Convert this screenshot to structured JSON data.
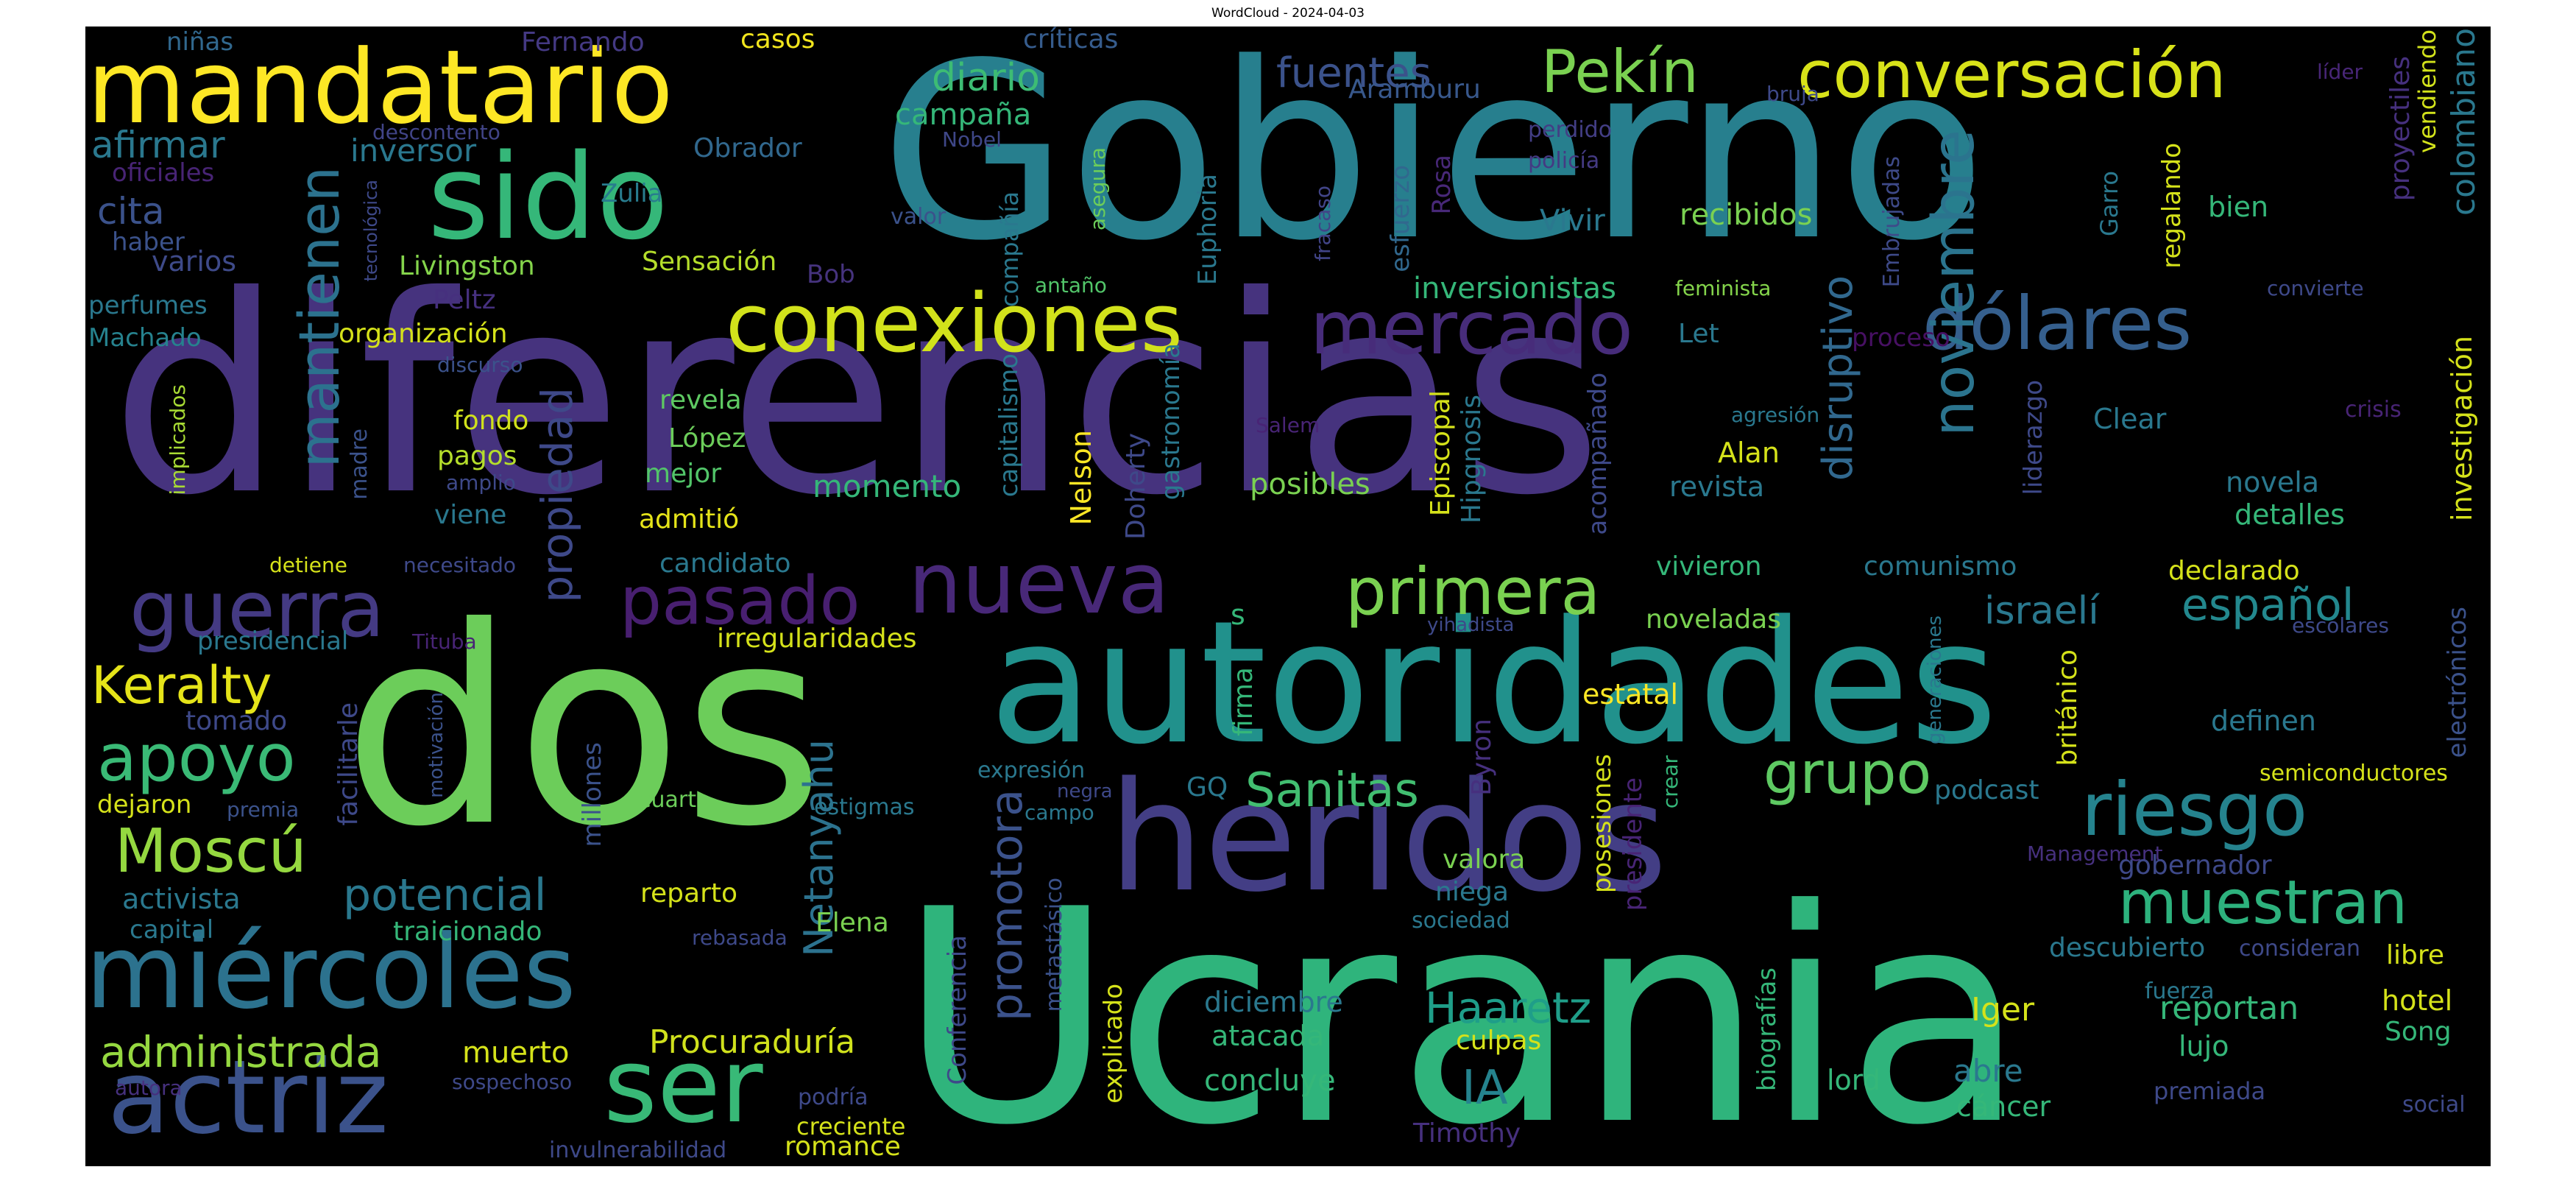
{
  "title": "WordCloud - 2024-04-03",
  "colors": {
    "background": "#000000",
    "page": "#ffffff"
  },
  "words": [
    {
      "text": "diferencias",
      "color": "#46337e"
    },
    {
      "text": "Ucrania",
      "color": "#2fb47c"
    },
    {
      "text": "Gobierno",
      "color": "#277f8e"
    },
    {
      "text": "dos",
      "color": "#6ccd5a"
    },
    {
      "text": "autoridades",
      "color": "#21918c"
    },
    {
      "text": "heridos",
      "color": "#433e85"
    },
    {
      "text": "mandatario",
      "color": "#fde725"
    },
    {
      "text": "sido",
      "color": "#35b779"
    },
    {
      "text": "miércoles",
      "color": "#2c728e"
    },
    {
      "text": "actriz",
      "color": "#3b528b"
    },
    {
      "text": "conexiones",
      "color": "#d2e21b"
    },
    {
      "text": "nueva",
      "color": "#482878"
    },
    {
      "text": "mercado",
      "color": "#472c7a"
    },
    {
      "text": "dólares",
      "color": "#355f8d"
    },
    {
      "text": "ser",
      "color": "#38b977"
    },
    {
      "text": "guerra",
      "color": "#443a83"
    },
    {
      "text": "riesgo",
      "color": "#25838e"
    },
    {
      "text": "pasado",
      "color": "#481f70"
    },
    {
      "text": "primera",
      "color": "#7ad151"
    },
    {
      "text": "muestran",
      "color": "#2db27d"
    },
    {
      "text": "Pekín",
      "color": "#7ad151"
    },
    {
      "text": "conversación",
      "color": "#d8e219"
    },
    {
      "text": "apoyo",
      "color": "#3aba76"
    },
    {
      "text": "Moscú",
      "color": "#95d840"
    },
    {
      "text": "Keralty",
      "color": "#e5e419"
    },
    {
      "text": "potencial",
      "color": "#2a788e"
    },
    {
      "text": "grupo",
      "color": "#5ec962"
    },
    {
      "text": "Sanitas",
      "color": "#42be71"
    },
    {
      "text": "administrada",
      "color": "#95d840"
    },
    {
      "text": "español",
      "color": "#23888e"
    },
    {
      "text": "israelí",
      "color": "#2a788e"
    },
    {
      "text": "Haaretz",
      "color": "#1f9e89"
    },
    {
      "text": "IA",
      "color": "#25838e"
    },
    {
      "text": "Procuraduría",
      "color": "#d0e11c"
    },
    {
      "text": "mantienen",
      "color": "#2c728e"
    },
    {
      "text": "noviembre",
      "color": "#2b748e"
    },
    {
      "text": "disruptivo",
      "color": "#31688e"
    },
    {
      "text": "propiedad",
      "color": "#3e4989"
    },
    {
      "text": "Netanyahu",
      "color": "#2c728e"
    },
    {
      "text": "promotora",
      "color": "#3b528b"
    },
    {
      "text": "fuentes",
      "color": "#3b528b"
    },
    {
      "text": "diario",
      "color": "#3dbc74"
    },
    {
      "text": "afirmar",
      "color": "#2a788e"
    },
    {
      "text": "inversor",
      "color": "#2a788e"
    },
    {
      "text": "cita",
      "color": "#3b528b"
    },
    {
      "text": "varios",
      "color": "#3e4a89"
    },
    {
      "text": "haber",
      "color": "#3b528b"
    },
    {
      "text": "campaña",
      "color": "#35b779"
    },
    {
      "text": "Zulia",
      "color": "#287c8e"
    },
    {
      "text": "Obrador",
      "color": "#31688e"
    },
    {
      "text": "Aramburu",
      "color": "#38588c"
    },
    {
      "text": "Livingston",
      "color": "#84d44b"
    },
    {
      "text": "Sensación",
      "color": "#b5de2b"
    },
    {
      "text": "Bob",
      "color": "#46337e"
    },
    {
      "text": "Peltz",
      "color": "#46307e"
    },
    {
      "text": "organización",
      "color": "#d5e21a"
    },
    {
      "text": "perfumes",
      "color": "#2a788e"
    },
    {
      "text": "Machado",
      "color": "#26828e"
    },
    {
      "text": "oficiales",
      "color": "#482475"
    },
    {
      "text": "niñas",
      "color": "#31688e"
    },
    {
      "text": "Fernando",
      "color": "#443983"
    },
    {
      "text": "casos",
      "color": "#f1e51d"
    },
    {
      "text": "críticas",
      "color": "#365c8d"
    },
    {
      "text": "descontento",
      "color": "#414487"
    },
    {
      "text": "Nobel",
      "color": "#3f4788"
    },
    {
      "text": "bruja",
      "color": "#3e4989"
    },
    {
      "text": "líder",
      "color": "#482677"
    },
    {
      "text": "vendiendo",
      "color": "#d2e21b"
    },
    {
      "text": "colombiano",
      "color": "#2a788e"
    },
    {
      "text": "proyectiles",
      "color": "#46307e"
    },
    {
      "text": "bien",
      "color": "#35b779"
    },
    {
      "text": "recibidos",
      "color": "#7ad151"
    },
    {
      "text": "Vivir",
      "color": "#2a788e"
    },
    {
      "text": "regalando",
      "color": "#d5e21a"
    },
    {
      "text": "Garro",
      "color": "#2a788e"
    },
    {
      "text": "Embrujadas",
      "color": "#3e4a89"
    },
    {
      "text": "inversionistas",
      "color": "#35b779"
    },
    {
      "text": "feminista",
      "color": "#84d44b"
    },
    {
      "text": "convierte",
      "color": "#3e4989"
    },
    {
      "text": "Let",
      "color": "#2a788e"
    },
    {
      "text": "proceso",
      "color": "#471063"
    },
    {
      "text": "Rosa",
      "color": "#482878"
    },
    {
      "text": "esfuerzo",
      "color": "#31688e"
    },
    {
      "text": "perdido",
      "color": "#433e85"
    },
    {
      "text": "policía",
      "color": "#443a83"
    },
    {
      "text": "valor",
      "color": "#3b528b"
    },
    {
      "text": "asegura",
      "color": "#6ccd5a"
    },
    {
      "text": "fracaso",
      "color": "#414487"
    },
    {
      "text": "compañía",
      "color": "#2a788e"
    },
    {
      "text": "Euphoria",
      "color": "#2a788e"
    },
    {
      "text": "antaño",
      "color": "#52c569"
    },
    {
      "text": "tecnológica",
      "color": "#3e4989"
    },
    {
      "text": "discurso",
      "color": "#3b528b"
    },
    {
      "text": "fondo",
      "color": "#d0e11c"
    },
    {
      "text": "pagos",
      "color": "#b5de2b"
    },
    {
      "text": "revela",
      "color": "#5ec962"
    },
    {
      "text": "López",
      "color": "#6ccd5a"
    },
    {
      "text": "mejor",
      "color": "#52c569"
    },
    {
      "text": "admitió",
      "color": "#e5e419"
    },
    {
      "text": "viene",
      "color": "#2a788e"
    },
    {
      "text": "amplio",
      "color": "#3e4989"
    },
    {
      "text": "madre",
      "color": "#3b528b"
    },
    {
      "text": "implicados",
      "color": "#a8db34"
    },
    {
      "text": "momento",
      "color": "#35b779"
    },
    {
      "text": "capitalismo",
      "color": "#2a788e"
    },
    {
      "text": "Nelson",
      "color": "#fde725"
    },
    {
      "text": "Doherty",
      "color": "#3e4989"
    },
    {
      "text": "gastronomía",
      "color": "#2a788e"
    },
    {
      "text": "posibles",
      "color": "#7ad151"
    },
    {
      "text": "Episcopal",
      "color": "#d5e21a"
    },
    {
      "text": "Hipgnosis",
      "color": "#2a788e"
    },
    {
      "text": "Salem",
      "color": "#482475"
    },
    {
      "text": "acompañado",
      "color": "#3e4989"
    },
    {
      "text": "agresión",
      "color": "#2a788e"
    },
    {
      "text": "Alan",
      "color": "#d5e21a"
    },
    {
      "text": "revista",
      "color": "#2a788e"
    },
    {
      "text": "liderazgo",
      "color": "#3e4989"
    },
    {
      "text": "Clear",
      "color": "#2a788e"
    },
    {
      "text": "crisis",
      "color": "#482475"
    },
    {
      "text": "investigación",
      "color": "#d5e21a"
    },
    {
      "text": "novela",
      "color": "#2a788e"
    },
    {
      "text": "detalles",
      "color": "#35b779"
    },
    {
      "text": "detiene",
      "color": "#d5e21a"
    },
    {
      "text": "necesitado",
      "color": "#3e4989"
    },
    {
      "text": "candidato",
      "color": "#2a788e"
    },
    {
      "text": "vivieron",
      "color": "#35b779"
    },
    {
      "text": "comunismo",
      "color": "#2a788e"
    },
    {
      "text": "declarado",
      "color": "#d5e21a"
    },
    {
      "text": "presidencial",
      "color": "#2a788e"
    },
    {
      "text": "Tituba",
      "color": "#482475"
    },
    {
      "text": "irregularidades",
      "color": "#d5e21a"
    },
    {
      "text": "s",
      "color": "#35b779"
    },
    {
      "text": "noveladas",
      "color": "#7ad151"
    },
    {
      "text": "yihadista",
      "color": "#3e4989"
    },
    {
      "text": "escolares",
      "color": "#3e4989"
    },
    {
      "text": "electrónicos",
      "color": "#3b528b"
    },
    {
      "text": "tomado",
      "color": "#3e4989"
    },
    {
      "text": "facilitarle",
      "color": "#3e4989"
    },
    {
      "text": "motivación",
      "color": "#3b528b"
    },
    {
      "text": "millones",
      "color": "#3b528b"
    },
    {
      "text": "firma",
      "color": "#35b779"
    },
    {
      "text": "estatal",
      "color": "#fde725"
    },
    {
      "text": "Byron",
      "color": "#46307e"
    },
    {
      "text": "generaciones",
      "color": "#2a788e"
    },
    {
      "text": "británico",
      "color": "#d5e21a"
    },
    {
      "text": "definen",
      "color": "#2a788e"
    },
    {
      "text": "expresión",
      "color": "#2a788e"
    },
    {
      "text": "negra",
      "color": "#3e4989"
    },
    {
      "text": "dejaron",
      "color": "#d5e21a"
    },
    {
      "text": "premia",
      "color": "#3b528b"
    },
    {
      "text": "cuarto",
      "color": "#6ccd5a"
    },
    {
      "text": "estigmas",
      "color": "#2a788e"
    },
    {
      "text": "campo",
      "color": "#2a788e"
    },
    {
      "text": "GQ",
      "color": "#2a788e"
    },
    {
      "text": "posesiones",
      "color": "#d5e21a"
    },
    {
      "text": "presidente",
      "color": "#482475"
    },
    {
      "text": "crear",
      "color": "#35b779"
    },
    {
      "text": "podcast",
      "color": "#2a788e"
    },
    {
      "text": "semiconductores",
      "color": "#d5e21a"
    },
    {
      "text": "activista",
      "color": "#2a788e"
    },
    {
      "text": "reparto",
      "color": "#d5e21a"
    },
    {
      "text": "valora",
      "color": "#7ad151"
    },
    {
      "text": "niega",
      "color": "#2a788e"
    },
    {
      "text": "sociedad",
      "color": "#2a788e"
    },
    {
      "text": "Management",
      "color": "#46307e"
    },
    {
      "text": "gobernador",
      "color": "#3e4989"
    },
    {
      "text": "capital",
      "color": "#2a788e"
    },
    {
      "text": "traicionado",
      "color": "#35b779"
    },
    {
      "text": "rebasada",
      "color": "#3e4989"
    },
    {
      "text": "Elena",
      "color": "#7ad151"
    },
    {
      "text": "Conferencia",
      "color": "#3e4989"
    },
    {
      "text": "metastásico",
      "color": "#3b528b"
    },
    {
      "text": "descubierto",
      "color": "#2a788e"
    },
    {
      "text": "consideran",
      "color": "#3e4989"
    },
    {
      "text": "libre",
      "color": "#d5e21a"
    },
    {
      "text": "fuerza",
      "color": "#2a788e"
    },
    {
      "text": "hotel",
      "color": "#d5e21a"
    },
    {
      "text": "Song",
      "color": "#35b779"
    },
    {
      "text": "reportan",
      "color": "#35b779"
    },
    {
      "text": "lujo",
      "color": "#35b779"
    },
    {
      "text": "Iger",
      "color": "#d5e21a"
    },
    {
      "text": "muerto",
      "color": "#d5e21a"
    },
    {
      "text": "diciembre",
      "color": "#2a788e"
    },
    {
      "text": "atacada",
      "color": "#35b779"
    },
    {
      "text": "culpas",
      "color": "#d5e21a"
    },
    {
      "text": "concluye",
      "color": "#35b779"
    },
    {
      "text": "explicado",
      "color": "#d5e21a"
    },
    {
      "text": "biografías",
      "color": "#35b779"
    },
    {
      "text": "lord",
      "color": "#35b779"
    },
    {
      "text": "abre",
      "color": "#2a788e"
    },
    {
      "text": "cáncer",
      "color": "#35b779"
    },
    {
      "text": "premiada",
      "color": "#3e4989"
    },
    {
      "text": "social",
      "color": "#3e4989"
    },
    {
      "text": "autora",
      "color": "#46307e"
    },
    {
      "text": "sospechoso",
      "color": "#3e4989"
    },
    {
      "text": "podría",
      "color": "#3e4989"
    },
    {
      "text": "creciente",
      "color": "#d5e21a"
    },
    {
      "text": "Timothy",
      "color": "#46307e"
    },
    {
      "text": "invulnerabilidad",
      "color": "#3e4989"
    },
    {
      "text": "romance",
      "color": "#d5e21a"
    }
  ]
}
